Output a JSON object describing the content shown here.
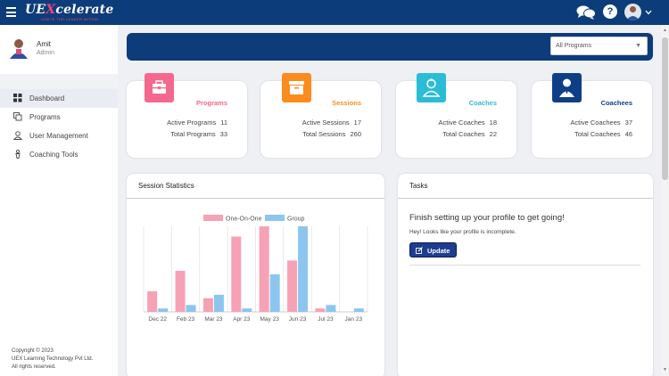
{
  "header": {
    "logo_text_1": "UE",
    "logo_text_2": "X",
    "logo_text_3": "celerate",
    "logo_tagline": "IGNITE THE LEADER WITHIN",
    "help_label": "?",
    "icons": [
      "menu-icon",
      "chat-icon",
      "help-icon",
      "user-avatar",
      "chevron-down-icon"
    ]
  },
  "sidebar": {
    "user_name": "Amit",
    "user_role": "Admin",
    "items": [
      {
        "label": "Dashboard",
        "icon": "dashboard-icon",
        "active": true
      },
      {
        "label": "Programs",
        "icon": "programs-icon",
        "active": false
      },
      {
        "label": "User Management",
        "icon": "user-icon",
        "active": false
      },
      {
        "label": "Coaching Tools",
        "icon": "tools-icon",
        "active": false
      }
    ],
    "copyright_1": "Copyright © 2023",
    "copyright_2": "UEX Learning Technology Pvt Ltd.",
    "copyright_3": "All rights reserved."
  },
  "filter": {
    "selected": "All Programs",
    "arrow": "▼"
  },
  "cards": [
    {
      "title": "Programs",
      "color": "#f5688e",
      "icon": "briefcase-icon",
      "rows": [
        {
          "label": "Active Programs",
          "value": "11"
        },
        {
          "label": "Total Programs",
          "value": "33"
        }
      ]
    },
    {
      "title": "Sessions",
      "color": "#fb8c1d",
      "icon": "archive-box-icon",
      "rows": [
        {
          "label": "Active Sessions",
          "value": "17"
        },
        {
          "label": "Total Sessions",
          "value": "260"
        }
      ]
    },
    {
      "title": "Coaches",
      "color": "#2bbcd6",
      "icon": "coach-icon",
      "rows": [
        {
          "label": "Active Coaches",
          "value": "18"
        },
        {
          "label": "Total Coaches",
          "value": "22"
        }
      ]
    },
    {
      "title": "Coachees",
      "color": "#0e3f86",
      "icon": "coachee-icon",
      "rows": [
        {
          "label": "Active Coachees",
          "value": "37"
        },
        {
          "label": "Total Coachees",
          "value": "46"
        }
      ]
    }
  ],
  "stats_panel": {
    "title": "Session Statistics"
  },
  "tasks_panel": {
    "title": "Tasks",
    "heading": "Finish setting up your profile to get going!",
    "subtext": "Hey! Looks like your profile is incomplete.",
    "button_label": "Update"
  },
  "chart_data": {
    "type": "bar",
    "categories": [
      "Dec 22",
      "Feb 23",
      "Mar 23",
      "Apr 23",
      "May 23",
      "Jun 23",
      "Jul 23",
      "Jan 23"
    ],
    "series": [
      {
        "name": "One-On-One",
        "color": "#f7a1b5",
        "values": [
          6,
          12,
          4,
          22,
          25,
          15,
          1,
          0
        ]
      },
      {
        "name": "Group",
        "color": "#8cc6ee",
        "values": [
          1,
          2,
          5,
          1,
          11,
          25,
          2,
          1
        ]
      }
    ],
    "ylim": [
      0,
      25
    ],
    "legend": "top-center",
    "grid": "vertical"
  }
}
